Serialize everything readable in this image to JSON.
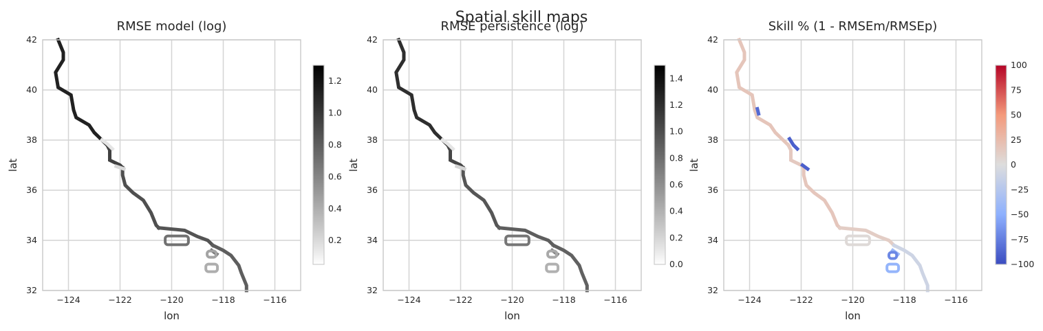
{
  "chart_data": {
    "suptitle": "Spatial skill maps",
    "panels": [
      {
        "type": "heatmap",
        "title": "RMSE model (log)",
        "xlabel": "lon",
        "ylabel": "lat",
        "xlim": [
          -125,
          -115
        ],
        "ylim": [
          32,
          42
        ],
        "xticks": [
          -124,
          -122,
          -120,
          -118,
          -116
        ],
        "xtick_labels": [
          "−124",
          "−122",
          "−120",
          "−118",
          "−116"
        ],
        "yticks": [
          32,
          34,
          36,
          38,
          40,
          42
        ],
        "ytick_labels": [
          "32",
          "34",
          "36",
          "38",
          "40",
          "42"
        ],
        "grid": true,
        "colormap": "greys",
        "colorbar": {
          "vmin": 0.05,
          "vmax": 1.3,
          "ticks": [
            0.2,
            0.4,
            0.6,
            0.8,
            1.0,
            1.2
          ],
          "tick_labels": [
            "0.2",
            "0.4",
            "0.6",
            "0.8",
            "1.0",
            "1.2"
          ]
        },
        "segments": [
          {
            "path": [
              [
                -124.4,
                42.0
              ],
              [
                -124.2,
                41.5
              ],
              [
                -124.2,
                41.2
              ],
              [
                -124.5,
                40.7
              ],
              [
                -124.4,
                40.1
              ],
              [
                -123.9,
                39.8
              ],
              [
                -123.8,
                39.2
              ],
              [
                -123.7,
                38.9
              ],
              [
                -123.2,
                38.6
              ],
              [
                -123.0,
                38.3
              ],
              [
                -122.7,
                38.0
              ],
              [
                -122.5,
                37.8
              ]
            ],
            "value": 1.12
          },
          {
            "path": [
              [
                -122.5,
                37.8
              ],
              [
                -122.4,
                37.6
              ],
              [
                -122.4,
                37.2
              ],
              [
                -122.0,
                37.0
              ],
              [
                -121.9,
                36.9
              ]
            ],
            "value": 0.95
          },
          {
            "path": [
              [
                -121.9,
                36.9
              ],
              [
                -121.9,
                36.6
              ],
              [
                -121.8,
                36.2
              ],
              [
                -121.5,
                35.9
              ],
              [
                -121.1,
                35.6
              ],
              [
                -120.8,
                35.1
              ],
              [
                -120.6,
                34.6
              ],
              [
                -120.5,
                34.5
              ]
            ],
            "value": 0.88
          },
          {
            "path": [
              [
                -120.5,
                34.5
              ],
              [
                -120.0,
                34.45
              ],
              [
                -119.5,
                34.4
              ],
              [
                -119.0,
                34.15
              ],
              [
                -118.6,
                34.0
              ],
              [
                -118.4,
                33.8
              ]
            ],
            "value": 0.85
          },
          {
            "path": [
              [
                -118.4,
                33.8
              ],
              [
                -118.0,
                33.6
              ],
              [
                -117.7,
                33.4
              ],
              [
                -117.4,
                33.0
              ],
              [
                -117.3,
                32.7
              ],
              [
                -117.1,
                32.2
              ],
              [
                -117.1,
                32.0
              ]
            ],
            "value": 0.8
          },
          {
            "path": [
              [
                -122.7,
                38.0
              ],
              [
                -122.5,
                37.85
              ],
              [
                -122.3,
                37.65
              ]
            ],
            "value": 0.15
          },
          {
            "path": [
              [
                -122.15,
                36.95
              ],
              [
                -121.85,
                36.85
              ]
            ],
            "value": 0.2
          },
          {
            "path": [
              [
                -118.45,
                33.6
              ],
              [
                -118.25,
                33.45
              ]
            ],
            "value": 0.7
          }
        ],
        "islands": [
          {
            "center": [
              -119.8,
              34.0
            ],
            "size": [
              0.9,
              0.35
            ],
            "value": 0.7
          },
          {
            "center": [
              -118.45,
              33.45
            ],
            "size": [
              0.35,
              0.25
            ],
            "value": 0.45
          },
          {
            "center": [
              -118.45,
              32.9
            ],
            "size": [
              0.45,
              0.3
            ],
            "value": 0.4
          }
        ]
      },
      {
        "type": "heatmap",
        "title": "RMSE persistence (log)",
        "xlabel": "lon",
        "ylabel": "lat",
        "xlim": [
          -125,
          -115
        ],
        "ylim": [
          32,
          42
        ],
        "xticks": [
          -124,
          -122,
          -120,
          -118,
          -116
        ],
        "xtick_labels": [
          "−124",
          "−122",
          "−120",
          "−118",
          "−116"
        ],
        "yticks": [
          32,
          34,
          36,
          38,
          40,
          42
        ],
        "ytick_labels": [
          "32",
          "34",
          "36",
          "38",
          "40",
          "42"
        ],
        "grid": true,
        "colormap": "greys",
        "colorbar": {
          "vmin": 0.0,
          "vmax": 1.5,
          "ticks": [
            0.0,
            0.2,
            0.4,
            0.6,
            0.8,
            1.0,
            1.2,
            1.4
          ],
          "tick_labels": [
            "0.0",
            "0.2",
            "0.4",
            "0.6",
            "0.8",
            "1.0",
            "1.2",
            "1.4"
          ]
        },
        "segments": [
          {
            "path": [
              [
                -124.4,
                42.0
              ],
              [
                -124.2,
                41.5
              ],
              [
                -124.2,
                41.2
              ],
              [
                -124.5,
                40.7
              ],
              [
                -124.4,
                40.1
              ],
              [
                -123.9,
                39.8
              ],
              [
                -123.8,
                39.2
              ],
              [
                -123.7,
                38.9
              ],
              [
                -123.2,
                38.6
              ],
              [
                -123.0,
                38.3
              ],
              [
                -122.7,
                38.0
              ],
              [
                -122.5,
                37.8
              ]
            ],
            "value": 1.2
          },
          {
            "path": [
              [
                -122.5,
                37.8
              ],
              [
                -122.4,
                37.6
              ],
              [
                -122.4,
                37.2
              ],
              [
                -122.0,
                37.0
              ],
              [
                -121.9,
                36.9
              ]
            ],
            "value": 1.05
          },
          {
            "path": [
              [
                -121.9,
                36.9
              ],
              [
                -121.9,
                36.6
              ],
              [
                -121.8,
                36.2
              ],
              [
                -121.5,
                35.9
              ],
              [
                -121.1,
                35.6
              ],
              [
                -120.8,
                35.1
              ],
              [
                -120.6,
                34.6
              ],
              [
                -120.5,
                34.5
              ]
            ],
            "value": 0.95
          },
          {
            "path": [
              [
                -120.5,
                34.5
              ],
              [
                -120.0,
                34.45
              ],
              [
                -119.5,
                34.4
              ],
              [
                -119.0,
                34.15
              ],
              [
                -118.6,
                34.0
              ],
              [
                -118.4,
                33.8
              ]
            ],
            "value": 0.9
          },
          {
            "path": [
              [
                -118.4,
                33.8
              ],
              [
                -118.0,
                33.6
              ],
              [
                -117.7,
                33.4
              ],
              [
                -117.4,
                33.0
              ],
              [
                -117.3,
                32.7
              ],
              [
                -117.1,
                32.2
              ],
              [
                -117.1,
                32.0
              ]
            ],
            "value": 0.88
          },
          {
            "path": [
              [
                -122.7,
                38.0
              ],
              [
                -122.5,
                37.85
              ],
              [
                -122.3,
                37.65
              ]
            ],
            "value": 0.12
          },
          {
            "path": [
              [
                -122.15,
                36.95
              ],
              [
                -121.85,
                36.85
              ]
            ],
            "value": 0.2
          },
          {
            "path": [
              [
                -118.45,
                33.6
              ],
              [
                -118.25,
                33.45
              ]
            ],
            "value": 0.7
          }
        ],
        "islands": [
          {
            "center": [
              -119.8,
              34.0
            ],
            "size": [
              0.9,
              0.35
            ],
            "value": 0.75
          },
          {
            "center": [
              -118.45,
              33.45
            ],
            "size": [
              0.35,
              0.25
            ],
            "value": 0.45
          },
          {
            "center": [
              -118.45,
              32.9
            ],
            "size": [
              0.45,
              0.3
            ],
            "value": 0.4
          }
        ]
      },
      {
        "type": "heatmap",
        "title": "Skill % (1 - RMSEm/RMSEp)",
        "xlabel": "lon",
        "ylabel": "lat",
        "xlim": [
          -125,
          -115
        ],
        "ylim": [
          32,
          42
        ],
        "xticks": [
          -124,
          -122,
          -120,
          -118,
          -116
        ],
        "xtick_labels": [
          "−124",
          "−122",
          "−120",
          "−118",
          "−116"
        ],
        "yticks": [
          32,
          34,
          36,
          38,
          40,
          42
        ],
        "ytick_labels": [
          "32",
          "34",
          "36",
          "38",
          "40",
          "42"
        ],
        "grid": true,
        "colormap": "coolwarm",
        "colorbar": {
          "vmin": -100,
          "vmax": 100,
          "ticks": [
            100,
            75,
            50,
            25,
            0,
            -25,
            -50,
            -75,
            -100
          ],
          "tick_labels": [
            "100",
            "75",
            "50",
            "25",
            "0",
            "−25",
            "−50",
            "−75",
            "−100"
          ]
        },
        "segments": [
          {
            "path": [
              [
                -124.4,
                42.0
              ],
              [
                -124.2,
                41.5
              ],
              [
                -124.2,
                41.2
              ],
              [
                -124.5,
                40.7
              ],
              [
                -124.4,
                40.1
              ],
              [
                -123.9,
                39.8
              ],
              [
                -123.8,
                39.2
              ],
              [
                -123.7,
                38.9
              ],
              [
                -123.2,
                38.6
              ],
              [
                -123.0,
                38.3
              ],
              [
                -122.7,
                38.0
              ],
              [
                -122.5,
                37.8
              ]
            ],
            "value": 18
          },
          {
            "path": [
              [
                -122.5,
                37.8
              ],
              [
                -122.4,
                37.6
              ],
              [
                -122.4,
                37.2
              ],
              [
                -122.0,
                37.0
              ],
              [
                -121.9,
                36.9
              ]
            ],
            "value": 15
          },
          {
            "path": [
              [
                -121.9,
                36.9
              ],
              [
                -121.9,
                36.6
              ],
              [
                -121.8,
                36.2
              ],
              [
                -121.5,
                35.9
              ],
              [
                -121.1,
                35.6
              ],
              [
                -120.8,
                35.1
              ],
              [
                -120.6,
                34.6
              ],
              [
                -120.5,
                34.5
              ]
            ],
            "value": 17
          },
          {
            "path": [
              [
                -120.5,
                34.5
              ],
              [
                -120.0,
                34.45
              ],
              [
                -119.5,
                34.4
              ],
              [
                -119.0,
                34.15
              ],
              [
                -118.6,
                34.0
              ],
              [
                -118.4,
                33.8
              ]
            ],
            "value": 12
          },
          {
            "path": [
              [
                -118.4,
                33.8
              ],
              [
                -118.0,
                33.6
              ],
              [
                -117.7,
                33.4
              ],
              [
                -117.4,
                33.0
              ],
              [
                -117.3,
                32.7
              ],
              [
                -117.1,
                32.2
              ],
              [
                -117.1,
                32.0
              ]
            ],
            "value": -10
          },
          {
            "path": [
              [
                -122.45,
                38.05
              ],
              [
                -122.3,
                37.8
              ],
              [
                -122.15,
                37.65
              ]
            ],
            "value": -90
          },
          {
            "path": [
              [
                -121.95,
                37.0
              ],
              [
                -121.75,
                36.85
              ]
            ],
            "value": -90
          },
          {
            "path": [
              [
                -123.7,
                39.25
              ],
              [
                -123.65,
                39.05
              ]
            ],
            "value": -85
          },
          {
            "path": [
              [
                -118.45,
                33.6
              ],
              [
                -118.25,
                33.45
              ]
            ],
            "value": -40
          }
        ],
        "islands": [
          {
            "center": [
              -119.8,
              34.0
            ],
            "size": [
              0.9,
              0.35
            ],
            "value": 3
          },
          {
            "center": [
              -118.45,
              33.4
            ],
            "size": [
              0.3,
              0.25
            ],
            "value": -70
          },
          {
            "center": [
              -118.45,
              32.9
            ],
            "size": [
              0.45,
              0.3
            ],
            "value": -45
          }
        ]
      }
    ]
  }
}
